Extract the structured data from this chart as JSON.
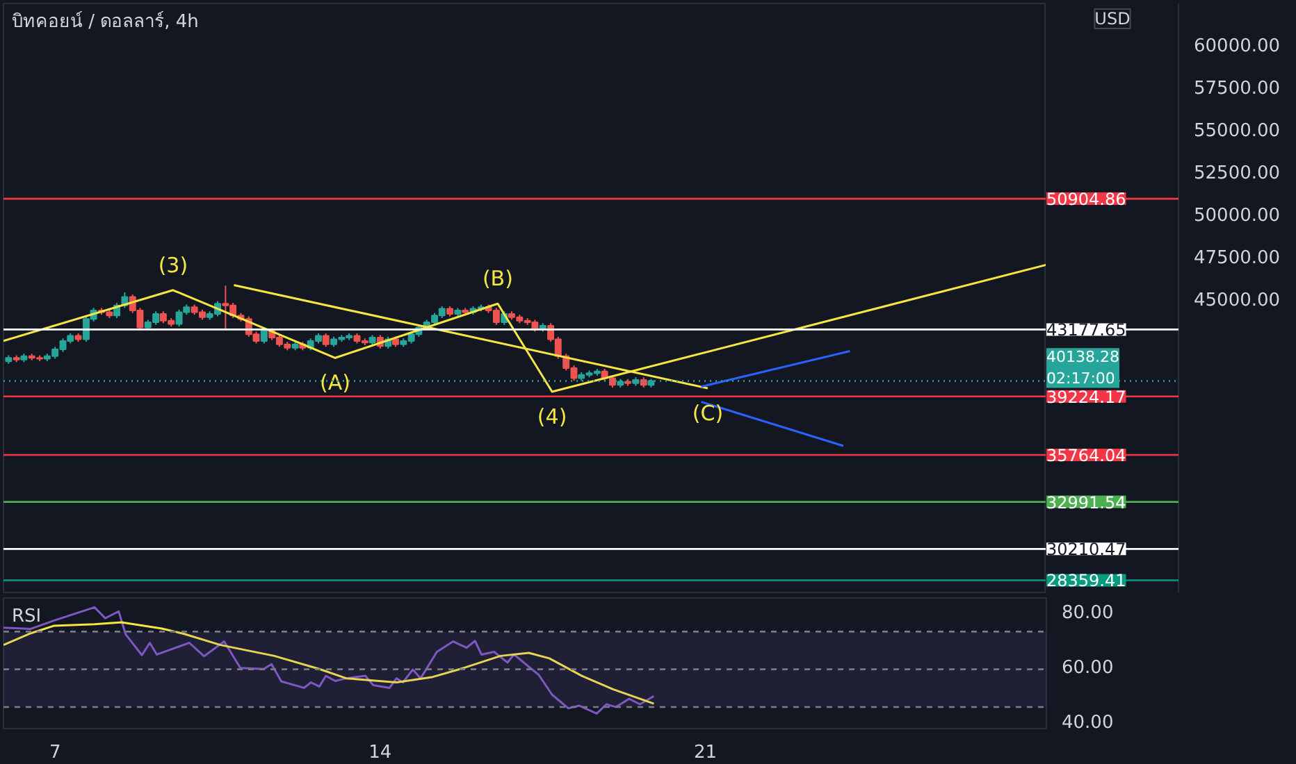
{
  "chart_data": [
    {
      "type": "candlestick",
      "title": "บิทคอยน์ / ดอลลาร์, 4h",
      "ylabel": "USD",
      "tick_labels": "y",
      "grid": false,
      "xlim": [
        5.89,
        28.34
      ],
      "ylim": [
        27640,
        62440
      ],
      "yticks": [
        {
          "value": 45000,
          "label": "45000.00"
        },
        {
          "value": 47500,
          "label": "47500.00"
        },
        {
          "value": 50000,
          "label": "50000.00"
        },
        {
          "value": 52500,
          "label": "52500.00"
        },
        {
          "value": 55000,
          "label": "55000.00"
        },
        {
          "value": 57500,
          "label": "57500.00"
        },
        {
          "value": 60000,
          "label": "60000.00"
        }
      ],
      "colors": [
        "#26a69a",
        "#ef5350",
        "#26a69a",
        "#ef5350",
        "#ef5350",
        "#26a69a",
        "#26a69a",
        "#26a69a",
        "#26a69a",
        "#ef5350",
        "#26a69a",
        "#26a69a",
        "#ef5350",
        "#ef5350",
        "#26a69a",
        "#26a69a",
        "#ef5350",
        "#ef5350",
        "#26a69a",
        "#26a69a",
        "#ef5350",
        "#ef5350",
        "#26a69a",
        "#26a69a",
        "#ef5350",
        "#ef5350",
        "#26a69a",
        "#26a69a",
        "#ef5350",
        "#ef5350",
        "#ef5350",
        "#ef5350",
        "#ef5350",
        "#26a69a",
        "#ef5350",
        "#ef5350",
        "#ef5350",
        "#26a69a",
        "#ef5350",
        "#26a69a",
        "#26a69a",
        "#ef5350",
        "#26a69a",
        "#26a69a",
        "#26a69a",
        "#ef5350",
        "#ef5350",
        "#26a69a",
        "#ef5350",
        "#26a69a",
        "#ef5350",
        "#26a69a",
        "#26a69a",
        "#26a69a",
        "#26a69a",
        "#26a69a",
        "#26a69a",
        "#ef5350",
        "#26a69a",
        "#ef5350",
        "#26a69a",
        "#26a69a",
        "#ef5350",
        "#ef5350",
        "#26a69a",
        "#ef5350",
        "#ef5350",
        "#ef5350",
        "#ef5350",
        "#26a69a",
        "#ef5350",
        "#ef5350",
        "#ef5350",
        "#ef5350",
        "#26a69a",
        "#26a69a",
        "#26a69a",
        "#ef5350",
        "#ef5350",
        "#26a69a",
        "#ef5350",
        "#26a69a",
        "#ef5350",
        "#26a69a"
      ],
      "x": [
        6,
        6.17,
        6.33,
        6.5,
        6.67,
        6.83,
        7,
        7.17,
        7.33,
        7.5,
        7.67,
        7.83,
        8,
        8.17,
        8.33,
        8.5,
        8.67,
        8.83,
        9,
        9.17,
        9.33,
        9.5,
        9.67,
        9.83,
        10,
        10.17,
        10.33,
        10.5,
        10.67,
        10.83,
        11,
        11.17,
        11.33,
        11.5,
        11.67,
        11.83,
        12,
        12.17,
        12.33,
        12.5,
        12.67,
        12.83,
        13,
        13.17,
        13.33,
        13.5,
        13.67,
        13.83,
        14,
        14.17,
        14.33,
        14.5,
        14.67,
        14.83,
        15,
        15.17,
        15.33,
        15.5,
        15.67,
        15.83,
        16,
        16.17,
        16.33,
        16.5,
        16.67,
        16.83,
        17,
        17.17,
        17.33,
        17.5,
        17.67,
        17.83,
        18,
        18.17,
        18.33,
        18.5,
        18.67,
        18.83,
        19,
        19.17,
        19.33,
        19.5,
        19.67,
        19.83
      ],
      "ohlc": [
        [
          41300,
          41650,
          41150,
          41500
        ],
        [
          41500,
          41650,
          41250,
          41400
        ],
        [
          41400,
          41750,
          41250,
          41600
        ],
        [
          41600,
          41750,
          41350,
          41500
        ],
        [
          41500,
          41650,
          41300,
          41450
        ],
        [
          41450,
          41750,
          41300,
          41600
        ],
        [
          41600,
          42150,
          41450,
          42000
        ],
        [
          42000,
          42650,
          41850,
          42500
        ],
        [
          42500,
          42950,
          42350,
          42800
        ],
        [
          42800,
          42950,
          42450,
          42600
        ],
        [
          42600,
          43950,
          42450,
          43800
        ],
        [
          43800,
          44450,
          43650,
          44300
        ],
        [
          44300,
          44450,
          44050,
          44200
        ],
        [
          44200,
          44350,
          43850,
          44000
        ],
        [
          44000,
          44750,
          43850,
          44600
        ],
        [
          44600,
          45370,
          44450,
          45100
        ],
        [
          45100,
          45250,
          44150,
          44300
        ],
        [
          44300,
          44450,
          43150,
          43300
        ],
        [
          43300,
          43750,
          43150,
          43600
        ],
        [
          43600,
          44250,
          43450,
          44100
        ],
        [
          44100,
          44250,
          43550,
          43700
        ],
        [
          43700,
          43850,
          43350,
          43500
        ],
        [
          43500,
          44350,
          43350,
          44200
        ],
        [
          44200,
          44650,
          44050,
          44500
        ],
        [
          44500,
          44650,
          44050,
          44200
        ],
        [
          44200,
          44350,
          43750,
          43900
        ],
        [
          43900,
          44250,
          43750,
          44100
        ],
        [
          44100,
          44850,
          43950,
          44700
        ],
        [
          44700,
          45770,
          43200,
          44600
        ],
        [
          44600,
          44750,
          43850,
          44000
        ],
        [
          44000,
          44150,
          43650,
          43800
        ],
        [
          43800,
          43950,
          42750,
          42900
        ],
        [
          42900,
          43050,
          42350,
          42500
        ],
        [
          42500,
          43250,
          42350,
          43100
        ],
        [
          43100,
          43250,
          42550,
          42700
        ],
        [
          42700,
          42850,
          42150,
          42300
        ],
        [
          42300,
          42450,
          41950,
          42100
        ],
        [
          42100,
          42450,
          41950,
          42300
        ],
        [
          42300,
          42450,
          41950,
          42100
        ],
        [
          42100,
          42650,
          41950,
          42500
        ],
        [
          42500,
          42950,
          42350,
          42800
        ],
        [
          42800,
          42950,
          42150,
          42300
        ],
        [
          42300,
          42750,
          42150,
          42600
        ],
        [
          42600,
          42850,
          42450,
          42700
        ],
        [
          42700,
          42950,
          42550,
          42800
        ],
        [
          42800,
          42950,
          42350,
          42500
        ],
        [
          42500,
          42650,
          42250,
          42400
        ],
        [
          42400,
          42850,
          42250,
          42700
        ],
        [
          42700,
          42850,
          42050,
          42200
        ],
        [
          42200,
          42750,
          42050,
          42600
        ],
        [
          42600,
          42750,
          42150,
          42300
        ],
        [
          42300,
          42650,
          42150,
          42500
        ],
        [
          42500,
          43050,
          42350,
          42900
        ],
        [
          42900,
          43450,
          42750,
          43300
        ],
        [
          43300,
          43750,
          43150,
          43600
        ],
        [
          43600,
          44150,
          43450,
          44000
        ],
        [
          44000,
          44550,
          43850,
          44400
        ],
        [
          44400,
          44550,
          43950,
          44100
        ],
        [
          44100,
          44450,
          43950,
          44300
        ],
        [
          44300,
          44450,
          44050,
          44200
        ],
        [
          44200,
          44550,
          44050,
          44400
        ],
        [
          44400,
          44650,
          44250,
          44500
        ],
        [
          44500,
          44650,
          44150,
          44300
        ],
        [
          44300,
          44450,
          43450,
          43600
        ],
        [
          43600,
          44250,
          43450,
          44100
        ],
        [
          44100,
          44250,
          43750,
          43900
        ],
        [
          43900,
          44050,
          43550,
          43700
        ],
        [
          43700,
          43850,
          43450,
          43600
        ],
        [
          43600,
          43750,
          43050,
          43200
        ],
        [
          43200,
          43550,
          43050,
          43400
        ],
        [
          43400,
          43550,
          42450,
          42600
        ],
        [
          42600,
          42750,
          41450,
          41600
        ],
        [
          41600,
          41750,
          40750,
          40900
        ],
        [
          40900,
          41050,
          40150,
          40300
        ],
        [
          40300,
          40650,
          40150,
          40500
        ],
        [
          40500,
          40750,
          40350,
          40600
        ],
        [
          40600,
          40850,
          40450,
          40700
        ],
        [
          40700,
          40850,
          40150,
          40300
        ],
        [
          40300,
          40450,
          39750,
          39900
        ],
        [
          39900,
          40250,
          39750,
          40100
        ],
        [
          40100,
          40250,
          39850,
          40000
        ],
        [
          40000,
          40350,
          39850,
          40200
        ],
        [
          40200,
          40350,
          39750,
          39900
        ],
        [
          39900,
          40250,
          39750,
          40138.28
        ]
      ],
      "series": [
        {
          "type": "line",
          "color": "#f5e642",
          "x": [
            5.89,
            9.54,
            13.03,
            16.53,
            17.7,
            28.34
          ],
          "values": [
            42500,
            45500,
            41500,
            44700,
            39500,
            47000
          ]
        },
        {
          "type": "line",
          "color": "#f5e642",
          "x": [
            10.85,
            21.05
          ],
          "values": [
            45800,
            39700
          ]
        },
        {
          "type": "line",
          "color": "#2962ff",
          "x": [
            20.91,
            24.11
          ],
          "values": [
            39800,
            41900
          ]
        },
        {
          "type": "line",
          "color": "#2962ff",
          "x": [
            20.91,
            23.97
          ],
          "values": [
            38900,
            36300
          ]
        }
      ],
      "ref_lines": [
        {
          "axis": "y",
          "value": 50904.86,
          "label": "50904.86",
          "color": "#f23645",
          "line_style": "solid"
        },
        {
          "axis": "y",
          "value": 43177.65,
          "label": "43177.65",
          "color": "#ffffff",
          "line_style": "solid"
        },
        {
          "axis": "y",
          "value": 40138.28,
          "label": "40138.28\n02:17:00",
          "color": "#26a69a",
          "line_style": "dotted"
        },
        {
          "axis": "y",
          "value": 39224.17,
          "label": "39224.17",
          "color": "#f23645",
          "line_style": "solid"
        },
        {
          "axis": "y",
          "value": 35764.04,
          "label": "35764.04",
          "color": "#f23645",
          "line_style": "solid"
        },
        {
          "axis": "y",
          "value": 32991.54,
          "label": "32991.54",
          "color": "#4caf50",
          "line_style": "solid"
        },
        {
          "axis": "y",
          "value": 30210.47,
          "label": "30210.47",
          "color": "#ffffff",
          "line_style": "solid"
        },
        {
          "axis": "y",
          "value": 28359.41,
          "label": "28359.41",
          "color": "#089981",
          "line_style": "solid"
        }
      ],
      "annotations": [
        {
          "text": "(3)",
          "x": 9.54,
          "y": 45500
        },
        {
          "text": "(A)",
          "x": 13.03,
          "y": 41500
        },
        {
          "text": "(B)",
          "x": 16.53,
          "y": 44700
        },
        {
          "text": "(4)",
          "x": 17.7,
          "y": 39500
        },
        {
          "text": "(C)",
          "x": 21.05,
          "y": 39700
        }
      ]
    },
    {
      "type": "line",
      "title": "RSI",
      "grid": false,
      "xlim": [
        5.89,
        28.34
      ],
      "ylim": [
        37.1,
        84.9
      ],
      "xticks": [
        7,
        14,
        21
      ],
      "yticks": [
        {
          "value": 40,
          "label": "40.00"
        },
        {
          "value": 60,
          "label": "60.00"
        },
        {
          "value": 80,
          "label": "80.00"
        }
      ],
      "bands": [
        {
          "axis": "y",
          "from": 45,
          "to": 72.6,
          "color": "#7e57c2"
        }
      ],
      "ref_lines": [
        {
          "axis": "y",
          "value": 72.6,
          "color": "#787b86",
          "line_style": "dashed"
        },
        {
          "axis": "y",
          "value": 58.8,
          "color": "#787b86",
          "line_style": "dashed"
        },
        {
          "axis": "y",
          "value": 45,
          "color": "#787b86",
          "line_style": "dashed"
        }
      ],
      "series": [
        {
          "type": "line",
          "color": "#7e57c2",
          "x": [
            5.89,
            6.48,
            6.97,
            7.85,
            8.08,
            8.37,
            8.52,
            8.87,
            9.04,
            9.19,
            9.48,
            9.89,
            10.21,
            10.64,
            10.99,
            11.49,
            11.66,
            11.87,
            12.36,
            12.51,
            12.69,
            12.83,
            13.03,
            13.27,
            13.68,
            13.85,
            14.2,
            14.35,
            14.49,
            14.7,
            14.87,
            15.22,
            15.57,
            15.86,
            16.04,
            16.18,
            16.45,
            16.74,
            16.88,
            17.41,
            17.7,
            18.05,
            18.28,
            18.66,
            18.87,
            19.07,
            19.36,
            19.59,
            19.89
          ],
          "values": [
            74,
            73.6,
            76.6,
            81.5,
            77.5,
            80,
            71.6,
            64,
            68.5,
            64.2,
            66,
            68.5,
            63.6,
            69,
            59.3,
            58.9,
            60.7,
            54.4,
            52,
            54,
            52.5,
            56.4,
            54.5,
            55.5,
            56.4,
            53,
            52,
            55.5,
            54,
            58.7,
            55.5,
            65.2,
            69,
            66.7,
            69.2,
            64.2,
            65.2,
            61.3,
            64.2,
            56.8,
            49.5,
            44.5,
            45.5,
            42.6,
            46,
            45,
            48,
            46,
            49
          ]
        },
        {
          "type": "line",
          "color": "#f5e642",
          "x": [
            5.89,
            6.48,
            6.97,
            7.85,
            8.43,
            9.3,
            9.77,
            10.56,
            11.72,
            12.69,
            13.27,
            14.35,
            15.13,
            15.8,
            16.59,
            17.2,
            17.64,
            18.34,
            19.01,
            19.89
          ],
          "values": [
            67.7,
            72,
            74.7,
            75.3,
            76,
            73.7,
            71.8,
            67.7,
            63.7,
            58.9,
            55.5,
            54,
            56,
            59.3,
            63.7,
            64.8,
            62.8,
            56.4,
            51.5,
            46.2
          ]
        }
      ]
    }
  ]
}
